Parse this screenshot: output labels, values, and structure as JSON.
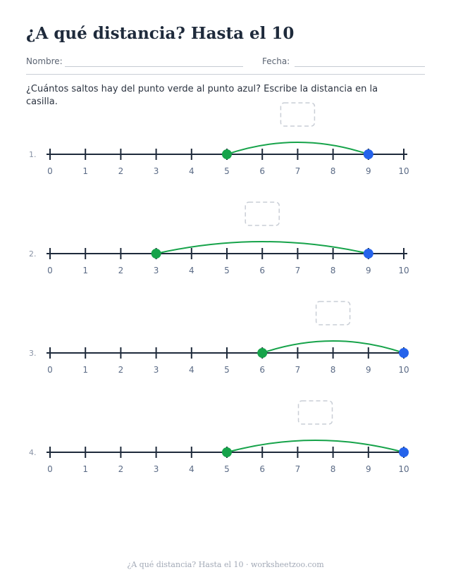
{
  "title": "¿A qué distancia? Hasta el 10",
  "fields": {
    "name_label": "Nombre:",
    "date_label": "Fecha:"
  },
  "instructions": "¿Cuántos saltos hay del punto verde al punto azul? Escribe la distancia en la casilla.",
  "number_line": {
    "min": 0,
    "max": 10,
    "labels": [
      "0",
      "1",
      "2",
      "3",
      "4",
      "5",
      "6",
      "7",
      "8",
      "9",
      "10"
    ]
  },
  "problems": [
    {
      "number": "1.",
      "start": 5,
      "end": 9
    },
    {
      "number": "2.",
      "start": 3,
      "end": 9
    },
    {
      "number": "3.",
      "start": 6,
      "end": 10
    },
    {
      "number": "4.",
      "start": 5,
      "end": 10
    }
  ],
  "colors": {
    "start_point": "#16a34a",
    "end_point": "#2563eb",
    "arc": "#16a34a",
    "line": "#1e2a3b",
    "answer_box": "#c9ced6"
  },
  "footer": "¿A qué distancia? Hasta el 10 · worksheetzoo.com"
}
